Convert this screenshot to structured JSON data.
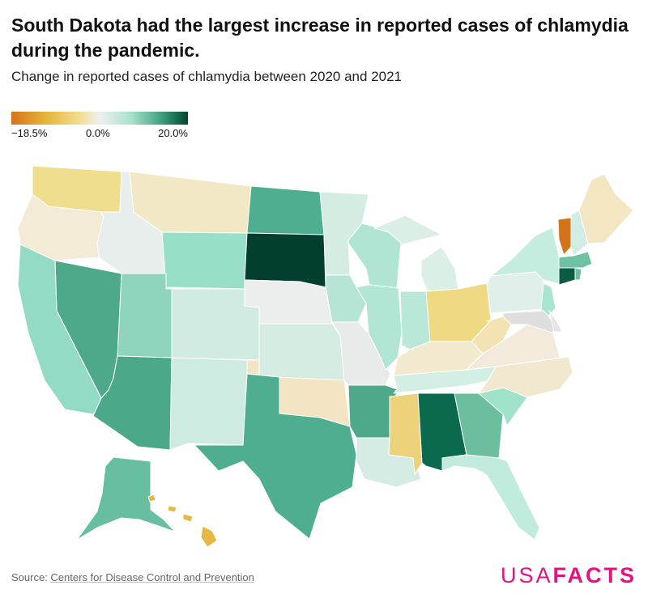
{
  "title": "South Dakota had the largest increase in reported cases of chlamydia during the pandemic.",
  "subtitle": "Change in reported cases of chlamydia between 2020 and 2021",
  "legend": {
    "min_label": "−18.5%",
    "mid_label": "0.0%",
    "max_label": "20.0%",
    "colors": [
      "#d5731d",
      "#efefef",
      "#00452f"
    ]
  },
  "source": {
    "prefix": "Source: ",
    "link": "Centers for Disease Control and Prevention"
  },
  "logo": {
    "usa": "USA",
    "facts": "FACTS",
    "color": "#e6117f"
  },
  "state_colors": {
    "WA": "#f0de8f",
    "OR": "#f3ebd6",
    "ID": "#e8eeec",
    "MT": "#f3e8c5",
    "WY": "#98dfc8",
    "ND": "#4fae8f",
    "SD": "#033f2e",
    "NE": "#ebeeed",
    "CO": "#d0ece2",
    "UT": "#8fd4bc",
    "NV": "#4ea98a",
    "CA": "#93dbc4",
    "AZ": "#4ba888",
    "NM": "#cdebe0",
    "KS": "#d5ece3",
    "OK": "#f3e5c4",
    "TX": "#4fae8f",
    "MN": "#d5ece3",
    "IA": "#b7e5d5",
    "MO": "#e8ebea",
    "AR": "#4da989",
    "LA": "#d4ece4",
    "WI": "#b0e5d3",
    "IL": "#b2e6d4",
    "MI": "#dbefe7",
    "IN": "#b9e8d8",
    "OH": "#f0d983",
    "KY": "#f3e9cf",
    "TN": "#d3efe5",
    "MS": "#ecd27a",
    "AL": "#0b6a4e",
    "GA": "#6bbf9f",
    "FL": "#c1ebdc",
    "SC": "#9fe3ca",
    "NC": "#f2e8cf",
    "VA": "#f3eadb",
    "WV": "#f3e3b2",
    "PA": "#e0efe9",
    "NY": "#c5eddf",
    "NJ": "#a9e5d1",
    "MD": "#dedede",
    "DE": "#e5e5e5",
    "VT": "#d5731d",
    "NH": "#d2eee4",
    "ME": "#f3e6c3",
    "MA": "#6fc2a4",
    "CT": "#0b5a44",
    "RI": "#69bfa0",
    "AK": "#67bea0",
    "HI": "#e4b842"
  }
}
